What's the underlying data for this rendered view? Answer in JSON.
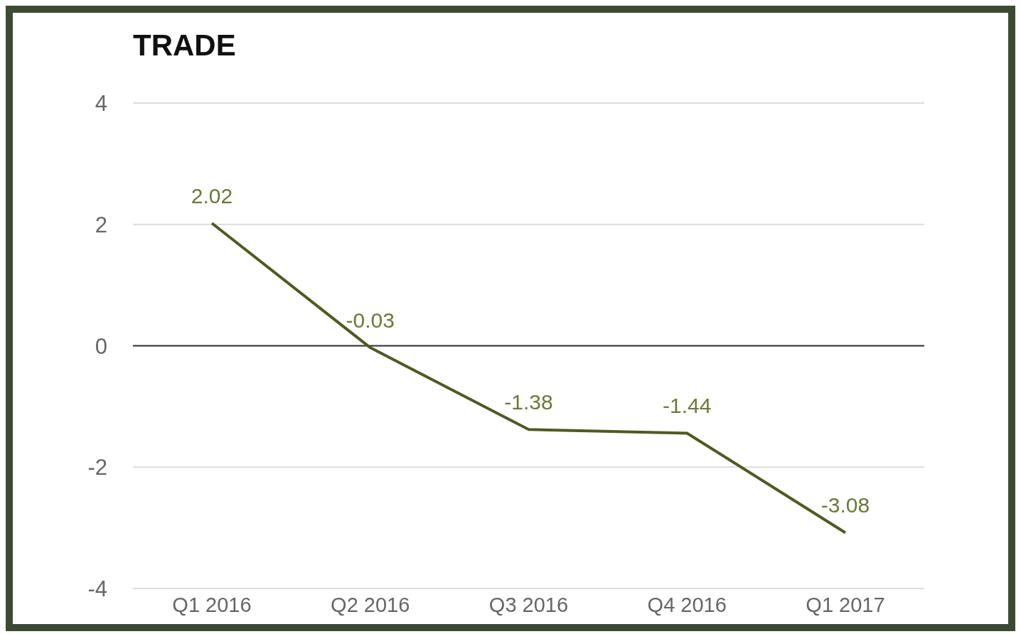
{
  "chart_data": {
    "type": "line",
    "title": "TRADE",
    "categories": [
      "Q1 2016",
      "Q2 2016",
      "Q3 2016",
      "Q4 2016",
      "Q1 2017"
    ],
    "series": [
      {
        "color": "#4f5a22",
        "values": [
          2.02,
          -0.03,
          -1.38,
          -1.44,
          -3.08
        ]
      }
    ],
    "ylim": [
      -4,
      4
    ],
    "yticks": [
      -4,
      -2,
      0,
      2,
      4
    ],
    "grid": "y",
    "data_labels": true,
    "marker": "none",
    "line_style": "solid",
    "ref_lines": [
      {
        "axis": "y",
        "value": 0,
        "color": "#333333"
      }
    ]
  }
}
